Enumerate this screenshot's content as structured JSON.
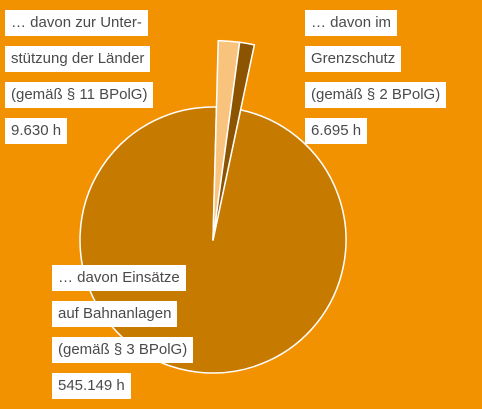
{
  "chart_data": {
    "type": "pie",
    "categories": [
      [
        "… davon zur Unter-",
        "stützung der Länder",
        "(gemäß § 11 BPolG)"
      ],
      [
        "… davon im",
        "Grenzschutz",
        "(gemäß § 2 BPolG)"
      ],
      [
        "… davon Einsätze",
        "auf Bahnanlagen",
        "(gemäß § 3 BPolG)"
      ]
    ],
    "values": [
      9630,
      6695,
      545149
    ],
    "value_labels": [
      "9.630 h",
      "6.695 h",
      "545.149 h"
    ],
    "colors": [
      "#f8c37c",
      "#8c5300",
      "#c77a00"
    ]
  }
}
